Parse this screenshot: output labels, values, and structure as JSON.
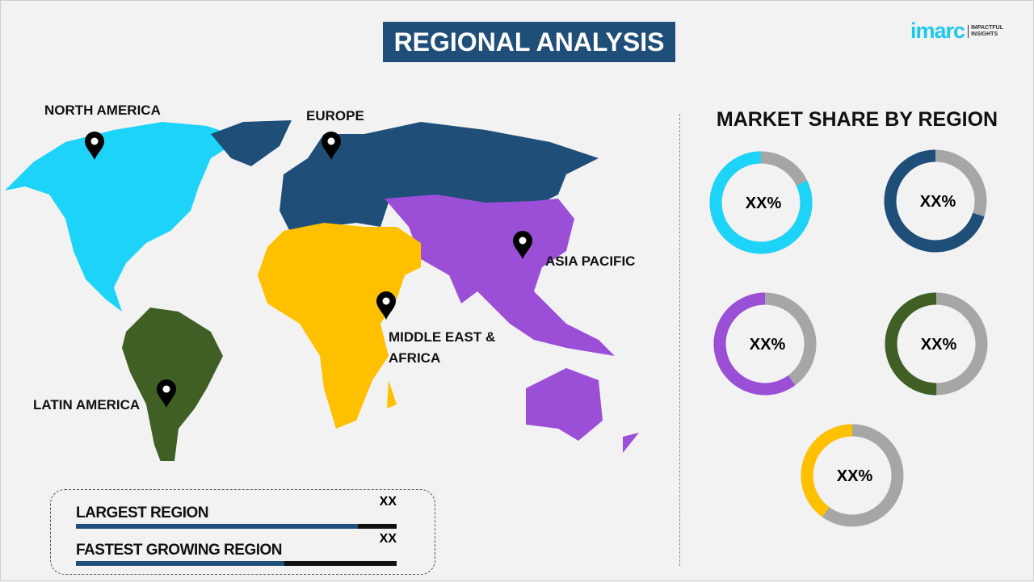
{
  "header": {
    "title": "REGIONAL ANALYSIS",
    "logo_text": "imarc",
    "logo_tagline": "IMPACTFUL INSIGHTS"
  },
  "map": {
    "labels": [
      "NORTH AMERICA",
      "EUROPE",
      "ASIA PACIFIC",
      "MIDDLE EAST &",
      "AFRICA",
      "LATIN AMERICA"
    ],
    "icons": [
      "map-pin-icon"
    ],
    "colors": {
      "north_america": "#1ed3f8",
      "europe": "#1f4e79",
      "asia_pacific": "#9a4fd6",
      "mea": "#ffc000",
      "latin_america": "#3f5f25"
    }
  },
  "summary": {
    "largest_label": "LARGEST REGION",
    "largest_value": "XX",
    "largest_fill_pct": 88,
    "fastest_label": "FASTEST GROWING REGION",
    "fastest_value": "XX",
    "fastest_fill_pct": 65
  },
  "chart_data": {
    "type": "pie",
    "title": "MARKET SHARE BY REGION",
    "style": "donut",
    "remainder_color": "#a6a6a6",
    "series": [
      {
        "label": "XX%",
        "fraction": 0.82,
        "color": "#1ed3f8"
      },
      {
        "label": "XX%",
        "fraction": 0.7,
        "color": "#1f4e79"
      },
      {
        "label": "XX%",
        "fraction": 0.6,
        "color": "#9a4fd6"
      },
      {
        "label": "XX%",
        "fraction": 0.5,
        "color": "#3f5f25"
      },
      {
        "label": "XX%",
        "fraction": 0.4,
        "color": "#ffc000"
      }
    ]
  }
}
